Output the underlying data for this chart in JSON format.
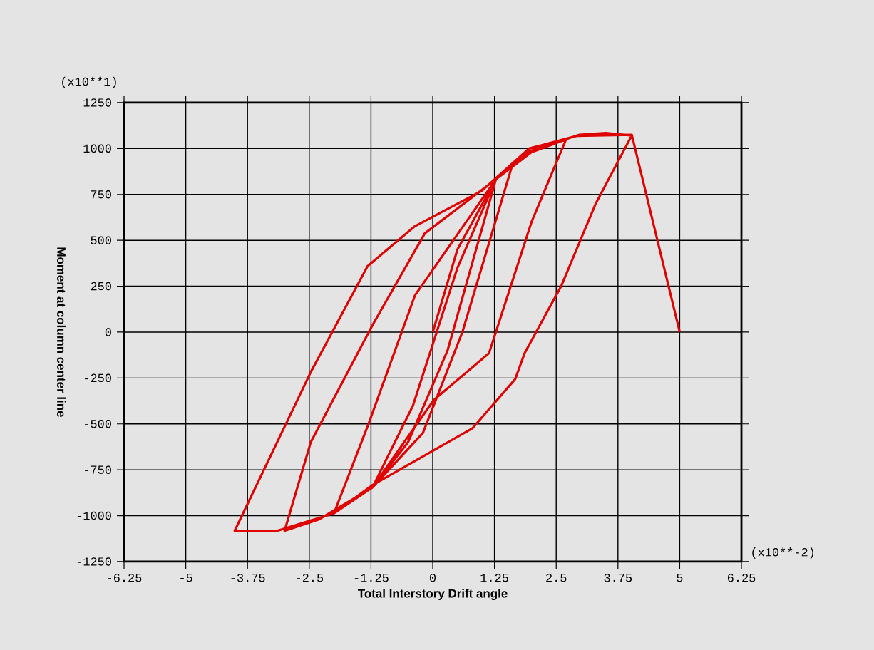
{
  "chart_data": {
    "type": "line",
    "xlabel": "Total Interstory Drift angle",
    "ylabel": "Moment at column center line",
    "annotations": [
      "(x10**1)",
      "(x10**-2)"
    ],
    "xlim": [
      -6.25,
      6.25
    ],
    "ylim": [
      -1250,
      1250
    ],
    "xticks": [
      -6.25,
      -5,
      -3.75,
      -2.5,
      -1.25,
      0,
      1.25,
      2.5,
      3.75,
      5,
      6.25
    ],
    "yticks": [
      -1250,
      -1000,
      -750,
      -500,
      -250,
      0,
      250,
      500,
      750,
      1000,
      1250
    ],
    "grid": true,
    "marker": "none",
    "line_style": "solid",
    "series": [
      {
        "color": "#e00000",
        "x": [
          0,
          0.5,
          1.28,
          0.3,
          -0.5,
          -1.22,
          -0.4,
          0.5,
          1.28,
          1.6,
          0.6,
          -0.2,
          -1.22,
          -2.0,
          -1.3,
          -0.36,
          1.28,
          2.0,
          2.7,
          2.0,
          1.14,
          0.02,
          -1.22,
          -2.3,
          -3.0,
          -2.47,
          -1.22,
          -0.16,
          1.28,
          1.95,
          2.97,
          3.5,
          4.03,
          3.3,
          2.6,
          1.86,
          1.67,
          0.8,
          -1.22,
          -2.0,
          -3.15,
          -4.01,
          -2.47,
          -1.32,
          -0.36,
          0.99,
          1.95,
          2.92,
          4.03,
          5.0
        ],
        "values": [
          0,
          450,
          833,
          -100,
          -600,
          -846,
          -400,
          350,
          833,
          900,
          0,
          -550,
          -846,
          -987,
          -500,
          200,
          833,
          980,
          1050,
          600,
          -115,
          -370,
          -846,
          -1020,
          -1082,
          -600,
          38,
          538,
          833,
          985,
          1075,
          1085,
          1071,
          700,
          250,
          -115,
          -256,
          -525,
          -833,
          -987,
          -1082,
          -1082,
          -218,
          359,
          577,
          769,
          1000,
          1069,
          1075,
          0
        ]
      }
    ]
  }
}
